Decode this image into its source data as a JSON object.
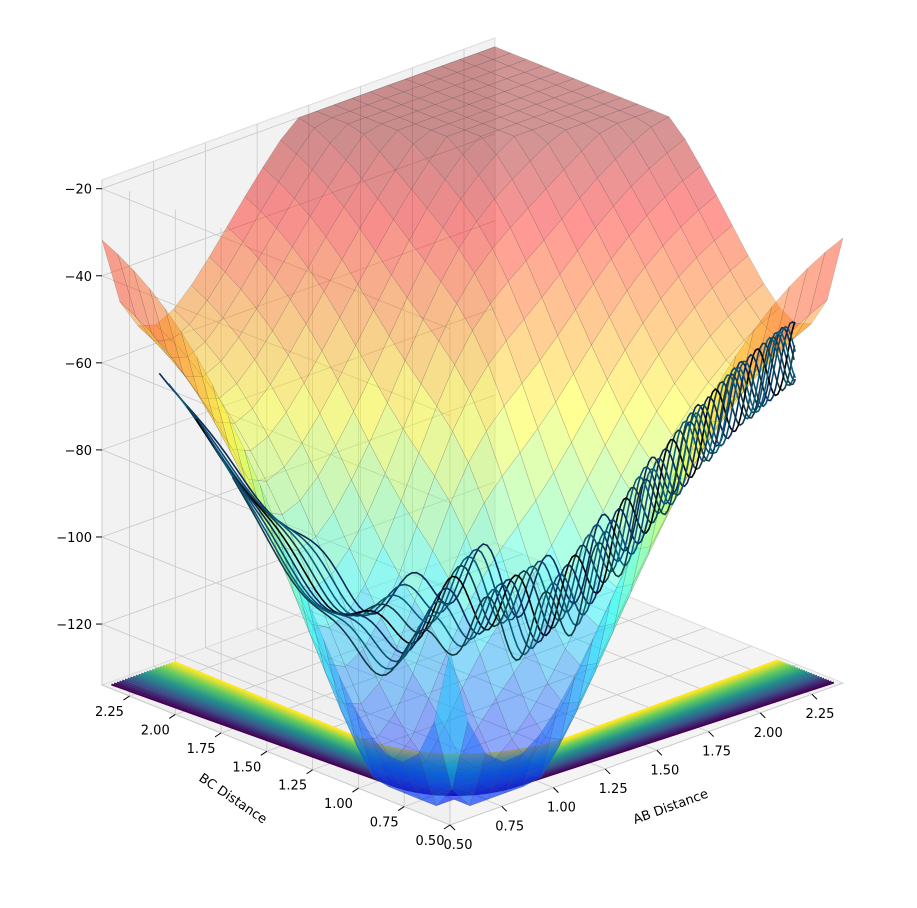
{
  "chart_data": {
    "type": "surface3d",
    "xlabel": "AB Distance",
    "ylabel": "BC Distance",
    "zlabel": "",
    "x_ticks": [
      "0.50",
      "0.75",
      "1.00",
      "1.25",
      "1.50",
      "1.75",
      "2.00",
      "2.25"
    ],
    "y_ticks": [
      "0.50",
      "0.75",
      "1.00",
      "1.25",
      "1.50",
      "1.75",
      "2.00",
      "2.25"
    ],
    "z_ticks": [
      "−20",
      "−40",
      "−60",
      "−80",
      "−100",
      "−120"
    ],
    "xlim": [
      0.5,
      2.4
    ],
    "ylim": [
      0.5,
      2.4
    ],
    "zlim": [
      -134,
      -18
    ],
    "surface_colormap": "jet",
    "contour_colormap": "viridis",
    "trajectory_colors": [
      "#0b2a5a",
      "#0e4a72",
      "#0a5f78",
      "#143c46",
      "#000000"
    ],
    "grid": true
  }
}
